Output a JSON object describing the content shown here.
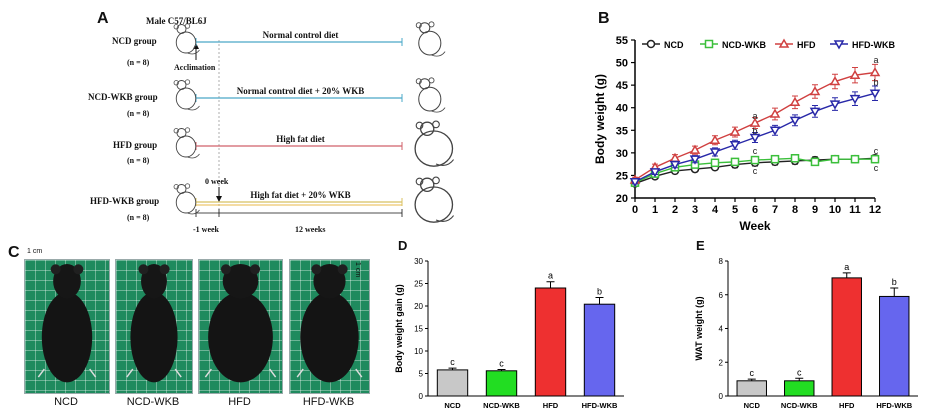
{
  "panels": {
    "a": "A",
    "b": "B",
    "c": "C",
    "d": "D",
    "e": "E"
  },
  "panel_a": {
    "strain": "Male C57/BL6J",
    "acclimation": "Acclimation",
    "week0": "0 week",
    "minus1": "-1 week",
    "twelve": "12 weeks",
    "groups": [
      {
        "name": "NCD group",
        "n": "(n = 8)",
        "diet": "Normal control diet",
        "line_color": "#4aa8c8"
      },
      {
        "name": "NCD-WKB group",
        "n": "(n = 8)",
        "diet": "Normal control diet + 20% WKB",
        "line_color": "#4aa8c8"
      },
      {
        "name": "HFD group",
        "n": "(n = 8)",
        "diet": "High fat diet",
        "line_color": "#d0606a"
      },
      {
        "name": "HFD-WKB group",
        "n": "(n = 8)",
        "diet": "High fat diet + 20% WKB",
        "line_color": "#d8c060"
      }
    ]
  },
  "panel_c": {
    "scale_label": "1 cm",
    "labels": [
      "NCD",
      "NCD-WKB",
      "HFD",
      "HFD-WKB"
    ]
  },
  "chart_data": [
    {
      "type": "line",
      "xlabel": "Week",
      "ylabel": "Body weight (g)",
      "x": [
        0,
        1,
        2,
        3,
        4,
        5,
        6,
        7,
        8,
        9,
        10,
        11,
        12
      ],
      "xlim": [
        0,
        12
      ],
      "ylim": [
        20,
        55
      ],
      "yticks": [
        20,
        25,
        30,
        35,
        40,
        45,
        50,
        55
      ],
      "legend_position": "top",
      "series": [
        {
          "name": "NCD",
          "color": "#222222",
          "marker": "circle",
          "values": [
            23.2,
            24.8,
            26.0,
            26.4,
            26.8,
            27.4,
            27.8,
            28.0,
            28.2,
            28.4,
            28.6,
            28.6,
            28.8
          ],
          "errors": [
            0.5,
            0.5,
            0.6,
            0.6,
            0.6,
            0.7,
            0.7,
            0.7,
            0.7,
            0.7,
            0.7,
            0.7,
            0.7
          ]
        },
        {
          "name": "NCD-WKB",
          "color": "#3bbf3b",
          "marker": "square",
          "values": [
            23.4,
            25.4,
            26.8,
            27.4,
            27.8,
            28.0,
            28.4,
            28.6,
            28.8,
            28.0,
            28.6,
            28.6,
            28.6
          ],
          "errors": [
            0.5,
            0.5,
            0.6,
            0.6,
            0.6,
            0.7,
            0.7,
            0.7,
            0.8,
            0.8,
            0.8,
            0.8,
            0.8
          ]
        },
        {
          "name": "HFD",
          "color": "#d04040",
          "marker": "triangle-up",
          "values": [
            24.0,
            26.8,
            28.8,
            30.6,
            32.8,
            34.6,
            36.6,
            38.6,
            41.2,
            43.6,
            45.8,
            47.2,
            47.8
          ],
          "errors": [
            0.6,
            0.7,
            0.8,
            0.9,
            1.0,
            1.1,
            1.2,
            1.3,
            1.4,
            1.5,
            1.6,
            1.7,
            1.8
          ]
        },
        {
          "name": "HFD-WKB",
          "color": "#2828a8",
          "marker": "triangle-down",
          "values": [
            23.6,
            25.8,
            27.4,
            28.6,
            30.2,
            31.8,
            33.4,
            35.0,
            37.2,
            39.2,
            40.8,
            42.0,
            43.2
          ],
          "errors": [
            0.5,
            0.6,
            0.7,
            0.8,
            0.9,
            1.0,
            1.1,
            1.1,
            1.2,
            1.3,
            1.4,
            1.5,
            1.6
          ]
        }
      ],
      "annotations": [
        {
          "x": 6,
          "y": 38.2,
          "text": "a"
        },
        {
          "x": 6,
          "y": 34.8,
          "text": "b"
        },
        {
          "x": 6,
          "y": 30.4,
          "text": "c"
        },
        {
          "x": 6,
          "y": 26.0,
          "text": "c"
        },
        {
          "x": 12,
          "y": 50.6,
          "text": "a"
        },
        {
          "x": 12,
          "y": 45.6,
          "text": "b"
        },
        {
          "x": 12,
          "y": 30.4,
          "text": "c"
        },
        {
          "x": 12,
          "y": 26.6,
          "text": "c"
        }
      ]
    },
    {
      "type": "bar",
      "ylabel": "Body weight gain (g)",
      "categories": [
        "NCD",
        "NCD-WKB",
        "HFD",
        "HFD-WKB"
      ],
      "values": [
        5.8,
        5.6,
        24.0,
        20.4
      ],
      "errors": [
        0.4,
        0.3,
        1.4,
        1.5
      ],
      "letters": [
        "c",
        "c",
        "a",
        "b"
      ],
      "colors": [
        "#c8c8c8",
        "#22dd22",
        "#ee3030",
        "#6666ee"
      ],
      "ylim": [
        0,
        30
      ],
      "yticks": [
        0,
        5,
        10,
        15,
        20,
        25,
        30
      ]
    },
    {
      "type": "bar",
      "ylabel": "WAT weight (g)",
      "categories": [
        "NCD",
        "NCD-WKB",
        "HFD",
        "HFD-WKB"
      ],
      "values": [
        0.9,
        0.9,
        7.0,
        5.9
      ],
      "errors": [
        0.1,
        0.15,
        0.3,
        0.5
      ],
      "letters": [
        "c",
        "c",
        "a",
        "b"
      ],
      "colors": [
        "#c8c8c8",
        "#22dd22",
        "#ee3030",
        "#6666ee"
      ],
      "ylim": [
        0,
        8
      ],
      "yticks": [
        0,
        2,
        4,
        6,
        8
      ]
    }
  ]
}
